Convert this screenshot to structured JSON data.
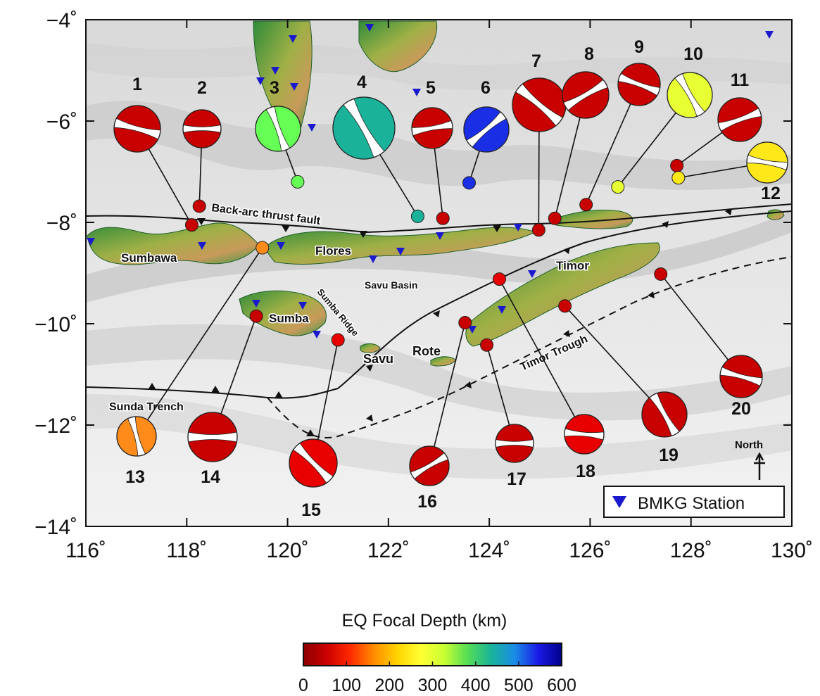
{
  "map": {
    "x_axis": {
      "ticks": [
        116,
        118,
        120,
        122,
        124,
        126,
        128,
        130
      ],
      "labels": [
        "116˚",
        "118˚",
        "120˚",
        "122˚",
        "124˚",
        "126˚",
        "128˚",
        "130˚"
      ]
    },
    "y_axis": {
      "ticks": [
        -4,
        -6,
        -8,
        -10,
        -12,
        -14
      ],
      "labels": [
        "−4˚",
        "−6˚",
        "−8˚",
        "−10˚",
        "−12˚",
        "−14˚"
      ]
    },
    "labels": {
      "sumbawa": "Sumbawa",
      "flores": "Flores",
      "savu_basin": "Savu Basin",
      "sumba": "Sumba",
      "sumba_ridge": "Sumba Ridge",
      "savu": "Savu",
      "rote": "Rote",
      "timor": "Timor",
      "timor_trough": "Timor Trough",
      "sunda_trench": "Sunda Trench",
      "back_arc": "Back-arc thrust fault",
      "north": "North"
    },
    "legend": {
      "station_label": "BMKG Station",
      "station_color": "#1a1acc"
    },
    "colors": {
      "shallow": "#cc0000",
      "red2": "#ff1a1a",
      "orange": "#ff8c1a",
      "yellow": "#fff51a",
      "yellow_green": "#d9ff33",
      "green": "#66ff55",
      "teal": "#1ab39a",
      "blue": "#1a2ee6"
    },
    "earthquakes": [
      {
        "id": 1,
        "label": "1",
        "lon": 118.1,
        "lat": -8.05,
        "color": "#c80000"
      },
      {
        "id": 2,
        "label": "2",
        "lon": 118.25,
        "lat": -7.68,
        "color": "#c80000"
      },
      {
        "id": 3,
        "label": "3",
        "lon": 120.2,
        "lat": -7.2,
        "color": "#66ff55"
      },
      {
        "id": 4,
        "label": "4",
        "lon": 122.58,
        "lat": -7.88,
        "color": "#1ab39a"
      },
      {
        "id": 5,
        "label": "5",
        "lon": 123.08,
        "lat": -7.92,
        "color": "#c80000"
      },
      {
        "id": 6,
        "label": "6",
        "lon": 123.6,
        "lat": -7.22,
        "color": "#1a2ee6"
      },
      {
        "id": 7,
        "label": "7",
        "lon": 124.98,
        "lat": -8.15,
        "color": "#c80000"
      },
      {
        "id": 8,
        "label": "8",
        "lon": 125.3,
        "lat": -7.92,
        "color": "#c80000"
      },
      {
        "id": 9,
        "label": "9",
        "lon": 125.92,
        "lat": -7.65,
        "color": "#c80000"
      },
      {
        "id": 10,
        "label": "10",
        "lon": 126.55,
        "lat": -7.3,
        "color": "#e8ff33"
      },
      {
        "id": 11,
        "label": "11",
        "lon": 127.72,
        "lat": -6.88,
        "color": "#c80000"
      },
      {
        "id": 12,
        "label": "12",
        "lon": 127.75,
        "lat": -7.12,
        "color": "#ffe81a"
      },
      {
        "id": 13,
        "label": "13",
        "lon": 119.5,
        "lat": -8.5,
        "color": "#ff8c1a"
      },
      {
        "id": 14,
        "label": "14",
        "lon": 119.38,
        "lat": -9.85,
        "color": "#c80000"
      },
      {
        "id": 15,
        "label": "15",
        "lon": 121.0,
        "lat": -10.32,
        "color": "#e80000"
      },
      {
        "id": 16,
        "label": "16",
        "lon": 123.52,
        "lat": -9.98,
        "color": "#c80000"
      },
      {
        "id": 17,
        "label": "17",
        "lon": 123.95,
        "lat": -10.42,
        "color": "#c80000"
      },
      {
        "id": 18,
        "label": "18",
        "lon": 124.2,
        "lat": -9.12,
        "color": "#e80000"
      },
      {
        "id": 19,
        "label": "19",
        "lon": 125.5,
        "lat": -9.65,
        "color": "#c80000"
      },
      {
        "id": 20,
        "label": "20",
        "lon": 127.4,
        "lat": -9.02,
        "color": "#c80000"
      }
    ]
  },
  "colorbar": {
    "title": "EQ Focal Depth (km)",
    "ticks": [
      "0",
      "100",
      "200",
      "300",
      "400",
      "500",
      "600"
    ],
    "stops": [
      "#8b0000",
      "#cc0000",
      "#ff2a00",
      "#ff8c00",
      "#ffd400",
      "#ffff33",
      "#c8ff33",
      "#55dd55",
      "#1ab39a",
      "#1a8ce6",
      "#1a1ae6",
      "#00008b"
    ]
  }
}
